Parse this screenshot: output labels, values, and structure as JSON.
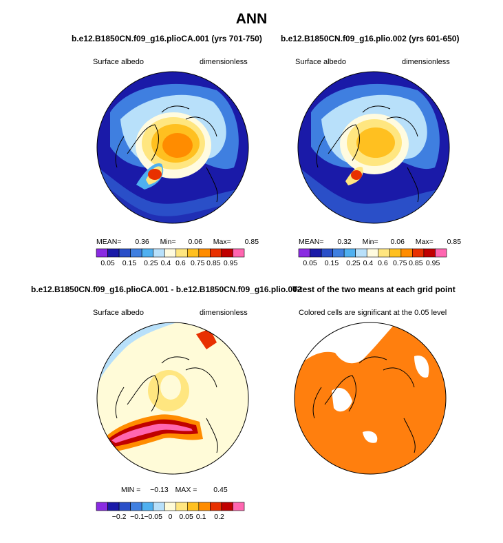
{
  "page": {
    "title": "ANN"
  },
  "colors": {
    "significance": "#ff7f0e",
    "land_outline": "#000000",
    "abs_scale": [
      "#8a2be2",
      "#1a1aa8",
      "#2a4fc8",
      "#3f7fe0",
      "#4fb0f0",
      "#b8e0fa",
      "#fffbe0",
      "#ffe680",
      "#ffc020",
      "#ff8c00",
      "#e83000",
      "#c00000",
      "#ff66b0"
    ],
    "diff_scale": [
      "#8a2be2",
      "#1a1aa8",
      "#2a4fc8",
      "#3f7fe0",
      "#4fb0f0",
      "#b8e0fa",
      "#fffbd8",
      "#ffe680",
      "#ffc020",
      "#ff8c00",
      "#e83000",
      "#c00000",
      "#ff66b0"
    ]
  },
  "chart_data": [
    {
      "type": "heatmap",
      "projection": "north-polar-stereographic",
      "title": "b.e12.B1850CN.f09_g16.plioCA.001 (yrs 701-750)",
      "variable": "Surface albedo",
      "units": "dimensionless",
      "stats": {
        "mean_label": "MEAN=",
        "mean": "0.36",
        "min_label": "Min=",
        "min": "0.06",
        "max_label": "Max=",
        "max": "0.85"
      },
      "colorbar": {
        "labels": [
          "0.05",
          "0.15",
          "0.25",
          "0.4",
          "0.6",
          "0.75",
          "0.85",
          "0.95"
        ]
      }
    },
    {
      "type": "heatmap",
      "projection": "north-polar-stereographic",
      "title": "b.e12.B1850CN.f09_g16.plio.002 (yrs 601-650)",
      "variable": "Surface albedo",
      "units": "dimensionless",
      "stats": {
        "mean_label": "MEAN=",
        "mean": "0.32",
        "min_label": "Min=",
        "min": "0.06",
        "max_label": "Max=",
        "max": "0.85"
      },
      "colorbar": {
        "labels": [
          "0.05",
          "0.15",
          "0.25",
          "0.4",
          "0.6",
          "0.75",
          "0.85",
          "0.95"
        ]
      }
    },
    {
      "type": "heatmap",
      "projection": "north-polar-stereographic",
      "title": "b.e12.B1850CN.f09_g16.plioCA.001 - b.e12.B1850CN.f09_g16.plio.002",
      "variable": "Surface albedo",
      "units": "dimensionless",
      "stats": {
        "min_label": "MIN =",
        "min": "−0.13",
        "max_label": "MAX =",
        "max": "0.45"
      },
      "colorbar": {
        "labels": [
          "−0.2",
          "−0.1",
          "−0.05",
          "0",
          "0.05",
          "0.1",
          "0.2"
        ]
      }
    },
    {
      "type": "heatmap",
      "projection": "north-polar-stereographic",
      "title": "T-test of the two means at each grid point",
      "subtitle": "Colored cells are significant at the 0.05 level"
    }
  ]
}
